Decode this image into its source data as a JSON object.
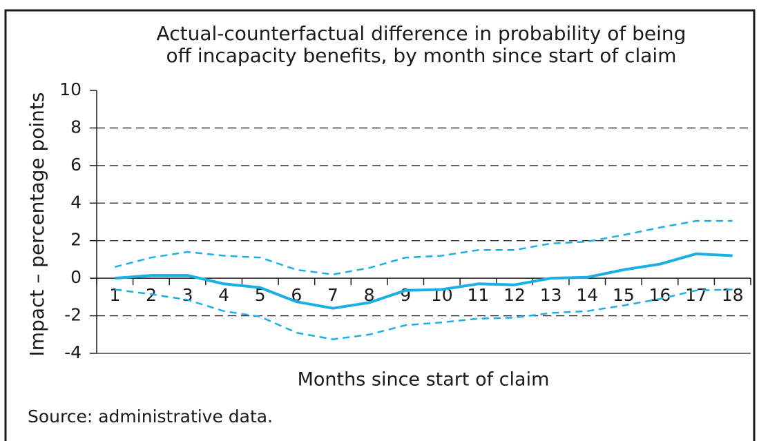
{
  "chart_data": {
    "type": "line",
    "title": [
      "Actual-counterfactual difference in probability of being",
      "off incapacity benefits, by month since start of claim"
    ],
    "x_label": "Months since start of claim",
    "y_label": "Impact – percentage points",
    "source": "Source: administrative data.",
    "categories": [
      "1",
      "2",
      "3",
      "4",
      "5",
      "6",
      "7",
      "8",
      "9",
      "10",
      "11",
      "12",
      "13",
      "14",
      "15",
      "16",
      "17",
      "18"
    ],
    "ylim": [
      -4,
      10
    ],
    "yticks": [
      -4,
      -2,
      0,
      2,
      4,
      6,
      8,
      10
    ],
    "grid": true,
    "series": [
      {
        "color": "#1ab0e6",
        "style": "solid",
        "values": [
          0,
          0.15,
          0.15,
          -0.3,
          -0.5,
          -1.25,
          -1.6,
          -1.3,
          -0.65,
          -0.6,
          -0.3,
          -0.35,
          0,
          0.05,
          0.45,
          0.75,
          1.3,
          1.2
        ]
      },
      {
        "color": "#1ab0e6",
        "style": "dashed",
        "values": [
          0.6,
          1.1,
          1.4,
          1.2,
          1.1,
          0.45,
          0.2,
          0.55,
          1.1,
          1.2,
          1.5,
          1.5,
          1.85,
          1.95,
          2.3,
          2.7,
          3.05,
          3.05
        ]
      },
      {
        "color": "#1ab0e6",
        "style": "dashed",
        "values": [
          -0.6,
          -0.85,
          -1.15,
          -1.75,
          -2.05,
          -2.9,
          -3.25,
          -3.0,
          -2.5,
          -2.35,
          -2.15,
          -2.1,
          -1.85,
          -1.75,
          -1.45,
          -1.1,
          -0.65,
          -0.6
        ]
      }
    ]
  }
}
